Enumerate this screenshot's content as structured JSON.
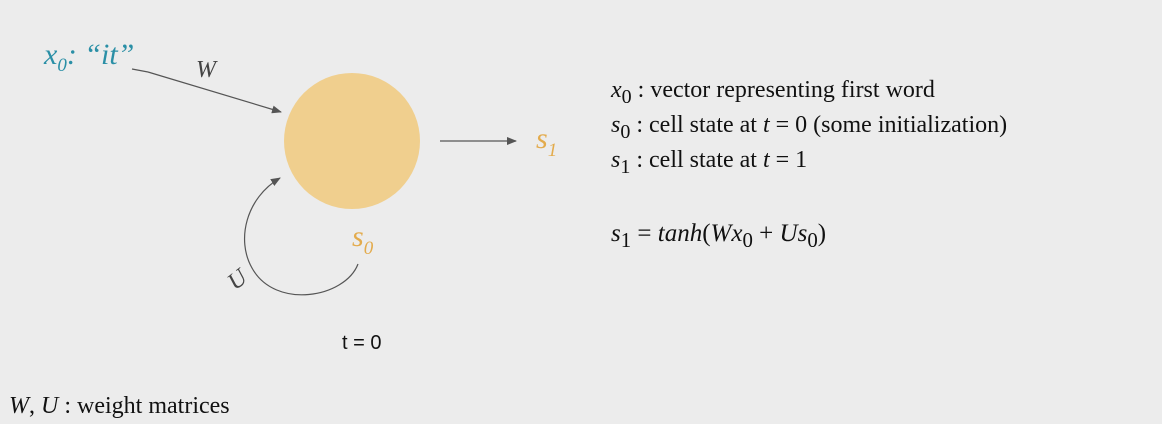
{
  "input": {
    "symbol": "x",
    "subscript": "0",
    "suffix": ": “it”"
  },
  "labels": {
    "w": "W",
    "u": "U",
    "s1_symbol": "s",
    "s1_subscript": "1",
    "s0_symbol": "s",
    "s0_subscript": "0",
    "time": "t = 0"
  },
  "definitions": [
    {
      "sym": "x",
      "sub": "0",
      "text": " : vector representing first word"
    },
    {
      "sym": "s",
      "sub": "0",
      "text": " : cell state at ",
      "var": "t",
      "tail": " = 0 (some initialization)"
    },
    {
      "sym": "s",
      "sub": "1",
      "text": " : cell state at ",
      "var": "t",
      "tail": " = 1"
    }
  ],
  "equation": {
    "lhs": "s",
    "lhs_sub": "1",
    "eq": " = ",
    "fn": "tanh",
    "open": "(",
    "w": "W",
    "x": "x",
    "x_sub": "0",
    "plus": " + ",
    "u": "U",
    "s": "s",
    "s_sub": "0",
    "close": ")"
  },
  "footer": {
    "w": "W",
    "sep": ", ",
    "u": "U",
    "text": " : weight matrices"
  },
  "colors": {
    "cell": "#f0cf8e",
    "input": "#2a8fa6",
    "state": "#e3ab4c"
  }
}
